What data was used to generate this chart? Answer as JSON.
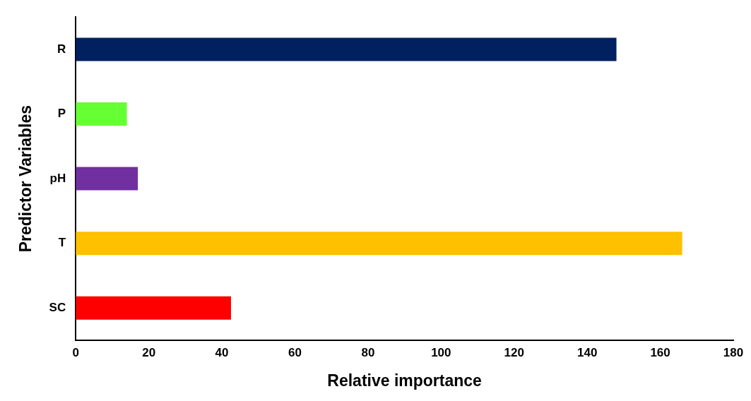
{
  "chart_data": {
    "type": "bar",
    "orientation": "horizontal",
    "xlabel": "Relative importance",
    "ylabel": "Predictor Variables",
    "categories": [
      "R",
      "P",
      "pH",
      "T",
      "SC"
    ],
    "values": [
      148,
      14,
      17,
      166,
      42.5
    ],
    "colors": [
      "#002060",
      "#66ff33",
      "#7030a0",
      "#ffc000",
      "#ff0000"
    ],
    "xlim": [
      0,
      180
    ],
    "xticks": [
      0,
      20,
      40,
      60,
      80,
      100,
      120,
      140,
      160,
      180
    ],
    "grid": false,
    "legend": false
  }
}
